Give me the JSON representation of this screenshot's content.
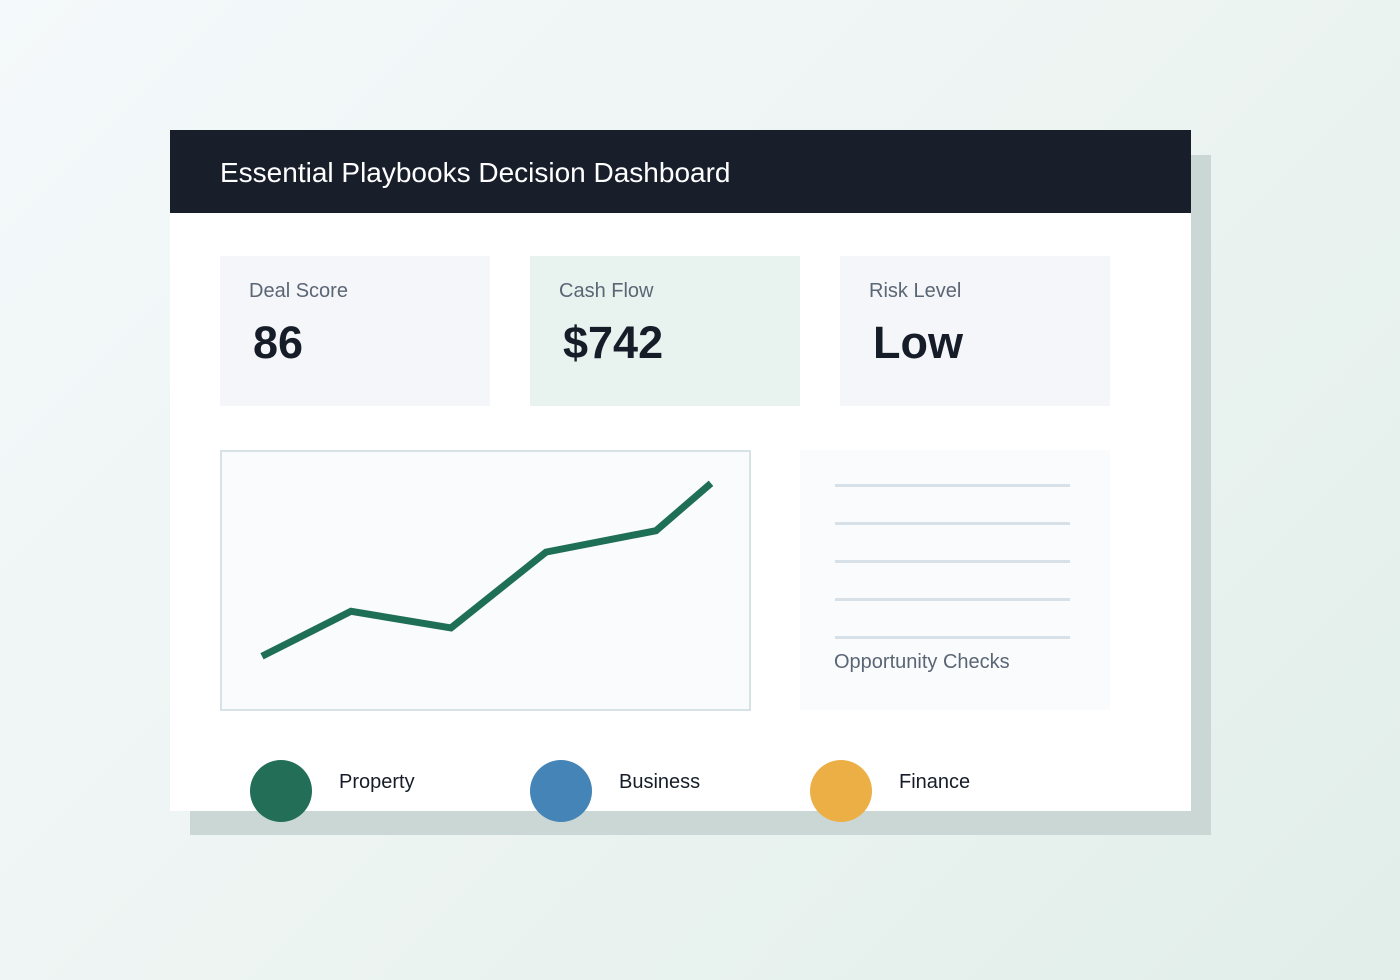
{
  "header": {
    "title": "Essential Playbooks Decision Dashboard"
  },
  "kpis": [
    {
      "label": "Deal Score",
      "value": "86"
    },
    {
      "label": "Cash Flow",
      "value": "$742"
    },
    {
      "label": "Risk Level",
      "value": "Low"
    }
  ],
  "chart_data": {
    "type": "line",
    "title": "",
    "xlabel": "",
    "ylabel": "",
    "grid": false,
    "color": "#1f6e56",
    "x": [
      1,
      2,
      3,
      4,
      5,
      6
    ],
    "values": [
      18,
      37,
      30,
      62,
      71,
      91
    ],
    "ylim": [
      0,
      100
    ]
  },
  "checks": {
    "label": "Opportunity Checks",
    "line_count": 5
  },
  "legend": [
    {
      "label": "Property",
      "color": "#226e56"
    },
    {
      "label": "Business",
      "color": "#4484b6"
    },
    {
      "label": "Finance",
      "color": "#ecaf45"
    }
  ]
}
